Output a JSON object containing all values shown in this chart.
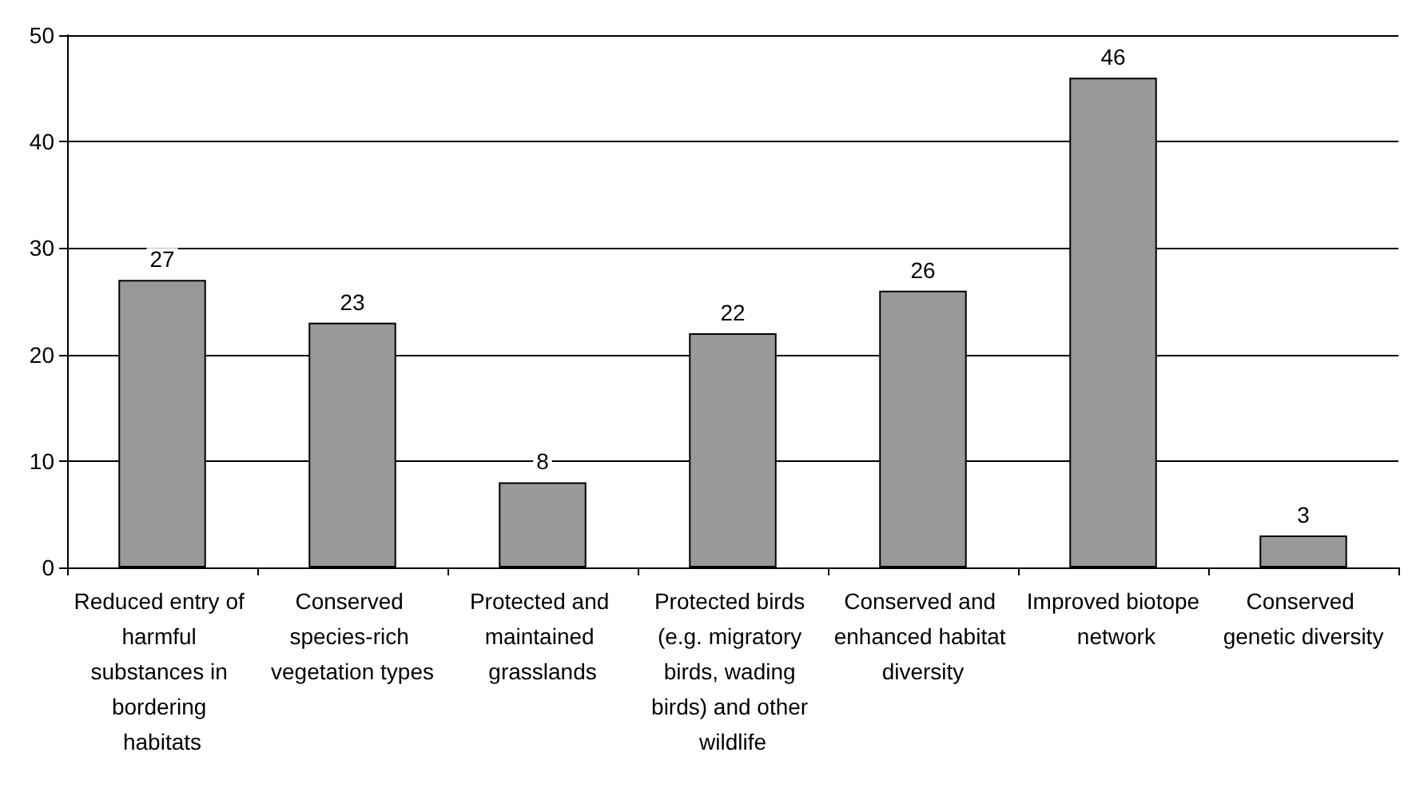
{
  "chart_data": {
    "type": "bar",
    "categories": [
      "Reduced entry of harmful substances in bordering habitats",
      "Conserved species-rich vegetation types",
      "Protected and maintained grasslands",
      "Protected birds (e.g. migratory birds, wading birds) and other wildlife",
      "Conserved and enhanced habitat diversity",
      "Improved biotope network",
      "Conserved genetic diversity"
    ],
    "values": [
      27,
      23,
      8,
      22,
      26,
      46,
      3
    ],
    "color": "#999999",
    "ylim": [
      0,
      50
    ],
    "yticks": [
      0,
      10,
      20,
      30,
      40,
      50
    ],
    "grid": "y",
    "data_labels": true
  }
}
